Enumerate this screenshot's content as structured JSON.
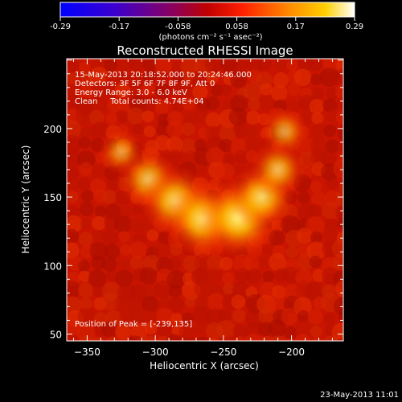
{
  "chart_data": {
    "type": "heatmap",
    "title": "Reconstructed RHESSI Image",
    "xlabel": "Heliocentric X (arcsec)",
    "ylabel": "Heliocentric Y (arcsec)",
    "xlim": [
      -365,
      -162
    ],
    "ylim": [
      45,
      251
    ],
    "xticks": [
      -350,
      -300,
      -250,
      -200
    ],
    "yticks": [
      50,
      100,
      150,
      200
    ],
    "colorbar": {
      "ticks": [
        "-0.29",
        "-0.17",
        "-0.058",
        "0.058",
        "0.17",
        "0.29"
      ],
      "range": [
        -0.29,
        0.29
      ],
      "unit_label": "(photons cm⁻² s⁻¹ asec⁻²)"
    },
    "info_lines": [
      "15-May-2013 20:18:52.000 to 20:24:46.000",
      "Detectors: 3F 5F 6F 7F 8F 9F, Att 0",
      "Energy Range: 3.0 - 6.0 keV",
      "Clean     Total counts: 4.74E+04"
    ],
    "peak_label": "Position of Peak = [-239,135]",
    "peak_position": [
      -239,
      135
    ],
    "plot_date": "23-May-2013 11:01",
    "source_components": [
      {
        "x": -325,
        "y": 183,
        "value": 0.09
      },
      {
        "x": -305,
        "y": 163,
        "value": 0.17
      },
      {
        "x": -285,
        "y": 147,
        "value": 0.23
      },
      {
        "x": -265,
        "y": 134,
        "value": 0.26
      },
      {
        "x": -239,
        "y": 135,
        "value": 0.29
      },
      {
        "x": -222,
        "y": 150,
        "value": 0.21
      },
      {
        "x": -210,
        "y": 170,
        "value": 0.15
      },
      {
        "x": -205,
        "y": 198,
        "value": 0.1
      }
    ]
  }
}
